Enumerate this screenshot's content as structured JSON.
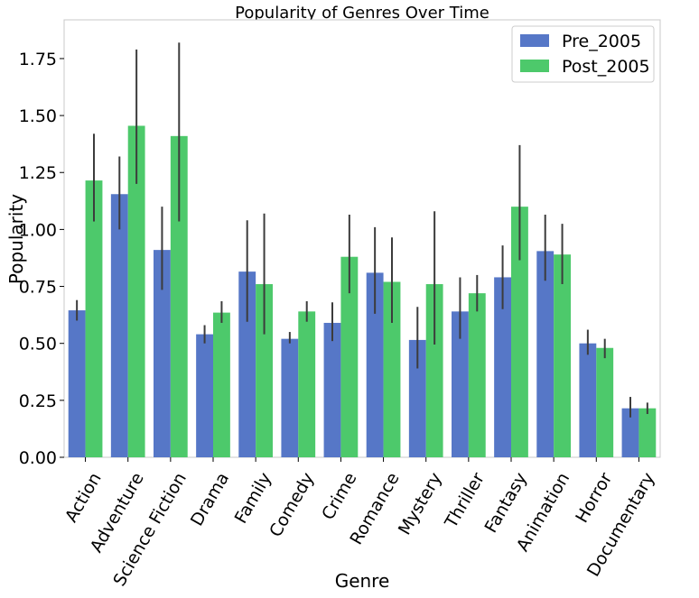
{
  "chart_data": {
    "type": "bar",
    "title": "Popularity of Genres Over Time",
    "xlabel": "Genre",
    "ylabel": "Popularity",
    "ylim": [
      0,
      1.92
    ],
    "yticks": [
      "0.00",
      "0.25",
      "0.50",
      "0.75",
      "1.00",
      "1.25",
      "1.50",
      "1.75"
    ],
    "grid": false,
    "legend_position": "top-right",
    "categories": [
      "Action",
      "Adventure",
      "Science Fiction",
      "Drama",
      "Family",
      "Comedy",
      "Crime",
      "Romance",
      "Mystery",
      "Thriller",
      "Fantasy",
      "Animation",
      "Horror",
      "Documentary"
    ],
    "series": [
      {
        "name": "Pre_2005",
        "color": "#5677c7",
        "values": [
          0.645,
          1.155,
          0.91,
          0.54,
          0.815,
          0.52,
          0.59,
          0.81,
          0.515,
          0.64,
          0.79,
          0.905,
          0.5,
          0.215
        ],
        "error_low": [
          0.6,
          1.0,
          0.735,
          0.5,
          0.595,
          0.5,
          0.51,
          0.63,
          0.39,
          0.52,
          0.65,
          0.775,
          0.45,
          0.175
        ],
        "error_high": [
          0.69,
          1.32,
          1.1,
          0.58,
          1.04,
          0.55,
          0.68,
          1.01,
          0.66,
          0.79,
          0.93,
          1.065,
          0.56,
          0.265
        ]
      },
      {
        "name": "Post_2005",
        "color": "#4dc96b",
        "values": [
          1.215,
          1.455,
          1.41,
          0.635,
          0.76,
          0.64,
          0.88,
          0.77,
          0.76,
          0.72,
          1.1,
          0.89,
          0.48,
          0.215
        ],
        "error_low": [
          1.035,
          1.2,
          1.035,
          0.59,
          0.54,
          0.595,
          0.72,
          0.59,
          0.495,
          0.64,
          0.865,
          0.76,
          0.435,
          0.19
        ],
        "error_high": [
          1.42,
          1.79,
          1.82,
          0.685,
          1.07,
          0.685,
          1.065,
          0.965,
          1.08,
          0.8,
          1.37,
          1.025,
          0.52,
          0.24
        ]
      }
    ]
  }
}
